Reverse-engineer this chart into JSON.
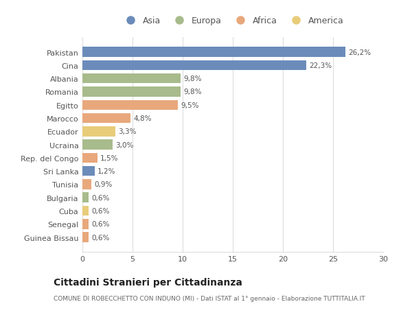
{
  "countries": [
    "Pakistan",
    "Cina",
    "Albania",
    "Romania",
    "Egitto",
    "Marocco",
    "Ecuador",
    "Ucraina",
    "Rep. del Congo",
    "Sri Lanka",
    "Tunisia",
    "Bulgaria",
    "Cuba",
    "Senegal",
    "Guinea Bissau"
  ],
  "values": [
    26.2,
    22.3,
    9.8,
    9.8,
    9.5,
    4.8,
    3.3,
    3.0,
    1.5,
    1.2,
    0.9,
    0.6,
    0.6,
    0.6,
    0.6
  ],
  "labels": [
    "26,2%",
    "22,3%",
    "9,8%",
    "9,8%",
    "9,5%",
    "4,8%",
    "3,3%",
    "3,0%",
    "1,5%",
    "1,2%",
    "0,9%",
    "0,6%",
    "0,6%",
    "0,6%",
    "0,6%"
  ],
  "categories": [
    "Asia",
    "Asia",
    "Europa",
    "Europa",
    "Africa",
    "Africa",
    "America",
    "Europa",
    "Africa",
    "Asia",
    "Africa",
    "Europa",
    "America",
    "Africa",
    "Africa"
  ],
  "colors": {
    "Asia": "#6b8cba",
    "Europa": "#a8bb8c",
    "Africa": "#e8a87c",
    "America": "#e8cc7a"
  },
  "legend_labels": [
    "Asia",
    "Europa",
    "Africa",
    "America"
  ],
  "legend_colors": [
    "#6b8cba",
    "#a8bb8c",
    "#e8a87c",
    "#e8cc7a"
  ],
  "title": "Cittadini Stranieri per Cittadinanza",
  "subtitle": "COMUNE DI ROBECCHETTO CON INDUNO (MI) - Dati ISTAT al 1° gennaio - Elaborazione TUTTITALIA.IT",
  "xlim": [
    0,
    30
  ],
  "xticks": [
    0,
    5,
    10,
    15,
    20,
    25,
    30
  ],
  "background_color": "#ffffff",
  "bar_height": 0.75,
  "grid_color": "#dddddd"
}
